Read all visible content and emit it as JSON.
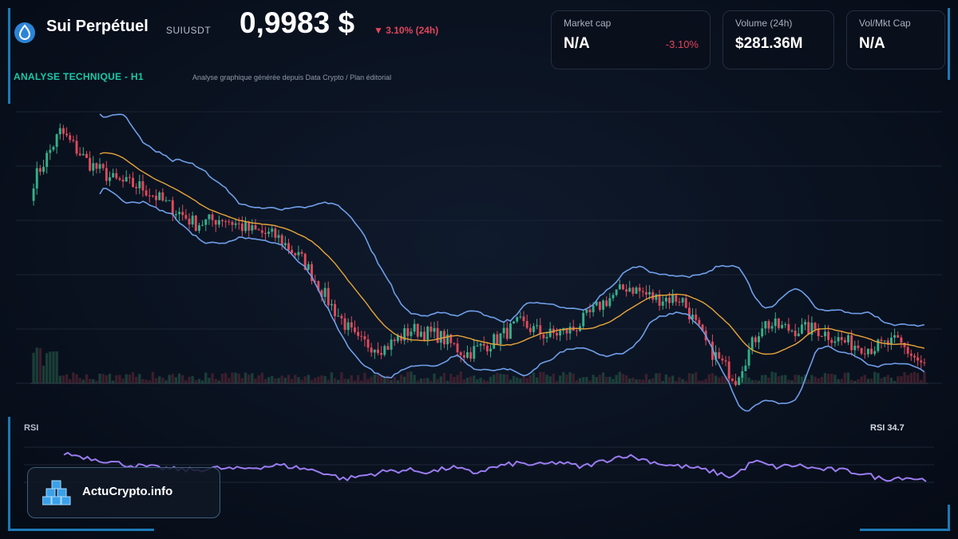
{
  "header": {
    "title": "Sui Perpétuel",
    "ticker": "SUIUSDT",
    "price": "0,9983 $",
    "change": "▼ 3.10% (24h)"
  },
  "stats": {
    "market_cap": {
      "label": "Market cap",
      "value": "N/A",
      "change": "-3.10%"
    },
    "volume": {
      "label": "Volume (24h)",
      "value": "$281.36M"
    },
    "ratio": {
      "label": "Vol/Mkt Cap",
      "value": "N/A"
    }
  },
  "section": {
    "title": "ANALYSE TECHNIQUE - H1",
    "subtitle": "Analyse graphique générée depuis Data Crypto / Plan éditorial"
  },
  "rsi": {
    "label": "RSI",
    "value_label": "RSI 34.7"
  },
  "brand": {
    "name": "ActuCrypto.info"
  },
  "colors": {
    "up": "#35b08a",
    "down": "#e04a5c",
    "bollinger": "#6f9ee8",
    "moving_average": "#e8a43a",
    "rsi": "#9a7cf0",
    "accent": "#19c9a8"
  },
  "icons": {
    "logo": "sui-drop-icon",
    "brand": "cubes-icon"
  },
  "chart_data": {
    "type": "candlestick",
    "timeframe": "H1",
    "indicators": [
      "bollinger-bands",
      "moving-average",
      "volume",
      "rsi"
    ],
    "price_keypoints": [
      1.3,
      1.38,
      1.33,
      1.3,
      1.29,
      1.26,
      1.23,
      1.24,
      1.22,
      1.21,
      1.17,
      1.1,
      1.04,
      1.03,
      1.06,
      1.05,
      1.02,
      1.04,
      1.07,
      1.05,
      1.06,
      1.1,
      1.13,
      1.11,
      1.11,
      1.03,
      0.98,
      1.07,
      1.06,
      1.06,
      1.04,
      1.03,
      1.04,
      1.0
    ],
    "ylim": [
      0.96,
      1.45
    ],
    "rsi_keypoints": [
      62,
      58,
      54,
      50,
      48,
      46,
      45,
      47,
      46,
      48,
      50,
      47,
      43,
      36,
      40,
      44,
      45,
      43,
      48,
      42,
      48,
      52,
      50,
      53,
      48,
      54,
      60,
      55,
      50,
      48,
      44,
      38,
      54,
      48,
      50,
      46,
      45,
      42,
      36,
      38,
      35
    ],
    "rsi_ylim": [
      20,
      80
    ],
    "rsi_last": 34.7,
    "grid": true
  }
}
